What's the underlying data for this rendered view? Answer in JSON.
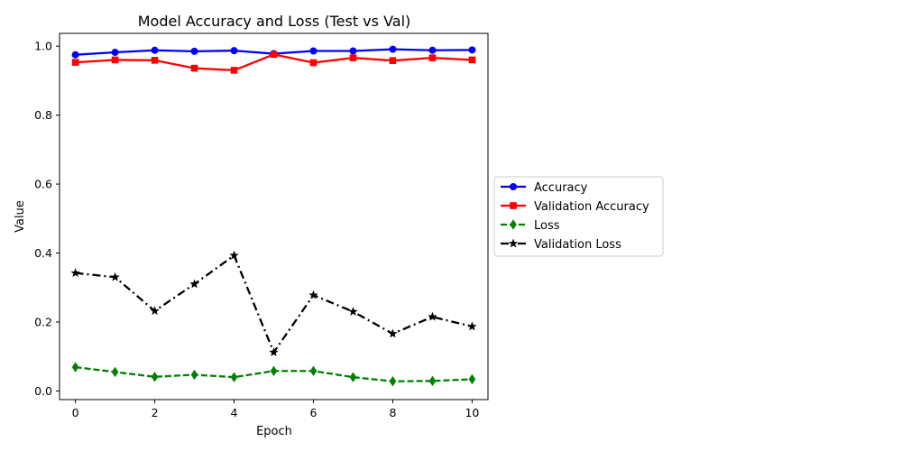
{
  "chart_data": {
    "type": "line",
    "title": "Model Accuracy and Loss (Test vs Val)",
    "xlabel": "Epoch",
    "ylabel": "Value",
    "x": [
      0,
      1,
      2,
      3,
      4,
      5,
      6,
      7,
      8,
      9,
      10
    ],
    "xlim": [
      -0.4,
      10.4
    ],
    "ylim": [
      -0.025,
      1.037
    ],
    "xticks": [
      0,
      2,
      4,
      6,
      8,
      10
    ],
    "yticks": [
      0.0,
      0.2,
      0.4,
      0.6,
      0.8,
      1.0
    ],
    "xtick_labels": [
      "0",
      "2",
      "4",
      "6",
      "8",
      "10"
    ],
    "ytick_labels": [
      "0.0",
      "0.2",
      "0.4",
      "0.6",
      "0.8",
      "1.0"
    ],
    "grid": false,
    "legend_position": "center-right (outside plot)",
    "series": [
      {
        "name": "Accuracy",
        "values": [
          0.975,
          0.982,
          0.988,
          0.985,
          0.987,
          0.978,
          0.986,
          0.986,
          0.991,
          0.988,
          0.989
        ],
        "color": "#0000ff",
        "linestyle": "solid",
        "marker": "circle"
      },
      {
        "name": "Validation Accuracy",
        "values": [
          0.953,
          0.96,
          0.959,
          0.936,
          0.93,
          0.976,
          0.952,
          0.966,
          0.958,
          0.966,
          0.96
        ],
        "color": "#ff0000",
        "linestyle": "solid",
        "marker": "square"
      },
      {
        "name": "Loss",
        "values": [
          0.069,
          0.055,
          0.041,
          0.047,
          0.04,
          0.058,
          0.058,
          0.04,
          0.028,
          0.029,
          0.034
        ],
        "color": "#008000",
        "linestyle": "dashed",
        "marker": "diamond"
      },
      {
        "name": "Validation Loss",
        "values": [
          0.342,
          0.33,
          0.232,
          0.31,
          0.393,
          0.112,
          0.278,
          0.23,
          0.166,
          0.215,
          0.187
        ],
        "color": "#000000",
        "linestyle": "dashdot",
        "marker": "star"
      }
    ]
  }
}
